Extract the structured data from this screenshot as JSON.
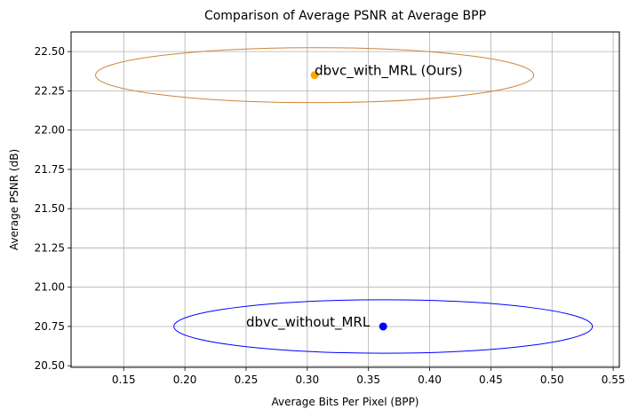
{
  "chart_data": {
    "type": "scatter",
    "title": "Comparison of Average PSNR at Average BPP",
    "xlabel": "Average Bits Per Pixel (BPP)",
    "ylabel": "Average PSNR (dB)",
    "xlim": [
      0.107,
      0.555
    ],
    "ylim": [
      20.49,
      22.625
    ],
    "xticks": [
      0.15,
      0.2,
      0.25,
      0.3,
      0.35,
      0.4,
      0.45,
      0.5,
      0.55
    ],
    "xtick_labels": [
      "0.15",
      "0.20",
      "0.25",
      "0.30",
      "0.35",
      "0.40",
      "0.45",
      "0.50",
      "0.55"
    ],
    "yticks": [
      20.5,
      20.75,
      21.0,
      21.25,
      21.5,
      21.75,
      22.0,
      22.25,
      22.5
    ],
    "ytick_labels": [
      "20.50",
      "20.75",
      "21.00",
      "21.25",
      "21.50",
      "21.75",
      "22.00",
      "22.25",
      "22.50"
    ],
    "grid": true,
    "points": [
      {
        "label": "dbvc_with_MRL (Ours)",
        "x": 0.306,
        "y": 22.35,
        "color": "#ffa500",
        "ellipse": {
          "cx": 0.306,
          "cy": 22.35,
          "rx": 0.179,
          "ry": 0.175,
          "color": "#cd853f"
        },
        "label_anchor": {
          "x": 0.306,
          "y": 22.35
        }
      },
      {
        "label": "dbvc_without_MRL",
        "x": 0.362,
        "y": 20.75,
        "color": "#0000ff",
        "ellipse": {
          "cx": 0.362,
          "cy": 20.75,
          "rx": 0.171,
          "ry": 0.17,
          "color": "#0000ff"
        },
        "label_anchor": {
          "x": 0.25,
          "y": 20.75
        }
      }
    ]
  }
}
